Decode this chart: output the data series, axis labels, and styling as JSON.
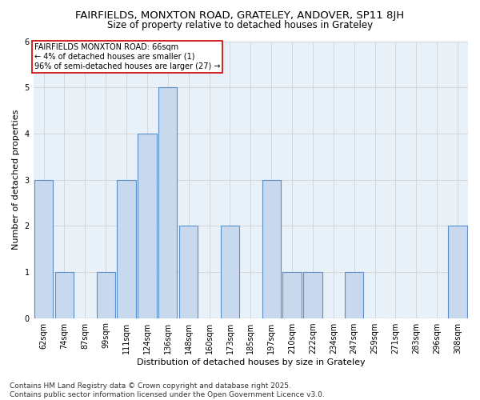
{
  "title_line1": "FAIRFIELDS, MONXTON ROAD, GRATELEY, ANDOVER, SP11 8JH",
  "title_line2": "Size of property relative to detached houses in Grateley",
  "xlabel": "Distribution of detached houses by size in Grateley",
  "ylabel": "Number of detached properties",
  "categories": [
    "62sqm",
    "74sqm",
    "87sqm",
    "99sqm",
    "111sqm",
    "124sqm",
    "136sqm",
    "148sqm",
    "160sqm",
    "173sqm",
    "185sqm",
    "197sqm",
    "210sqm",
    "222sqm",
    "234sqm",
    "247sqm",
    "259sqm",
    "271sqm",
    "283sqm",
    "296sqm",
    "308sqm"
  ],
  "values": [
    3,
    1,
    0,
    1,
    3,
    4,
    5,
    2,
    0,
    2,
    0,
    3,
    1,
    1,
    0,
    1,
    0,
    0,
    0,
    0,
    2
  ],
  "bar_color": "#c9d9ed",
  "bar_edge_color": "#5b8fc9",
  "annotation_text": "FAIRFIELDS MONXTON ROAD: 66sqm\n← 4% of detached houses are smaller (1)\n96% of semi-detached houses are larger (27) →",
  "annotation_box_edge_color": "#cc0000",
  "ylim": [
    0,
    6
  ],
  "yticks": [
    0,
    1,
    2,
    3,
    4,
    5,
    6
  ],
  "grid_color": "#cccccc",
  "background_color": "#e8f0f8",
  "footer_text": "Contains HM Land Registry data © Crown copyright and database right 2025.\nContains public sector information licensed under the Open Government Licence v3.0.",
  "title_fontsize": 9.5,
  "subtitle_fontsize": 8.5,
  "axis_label_fontsize": 8,
  "tick_fontsize": 7,
  "annotation_fontsize": 7,
  "footer_fontsize": 6.5
}
